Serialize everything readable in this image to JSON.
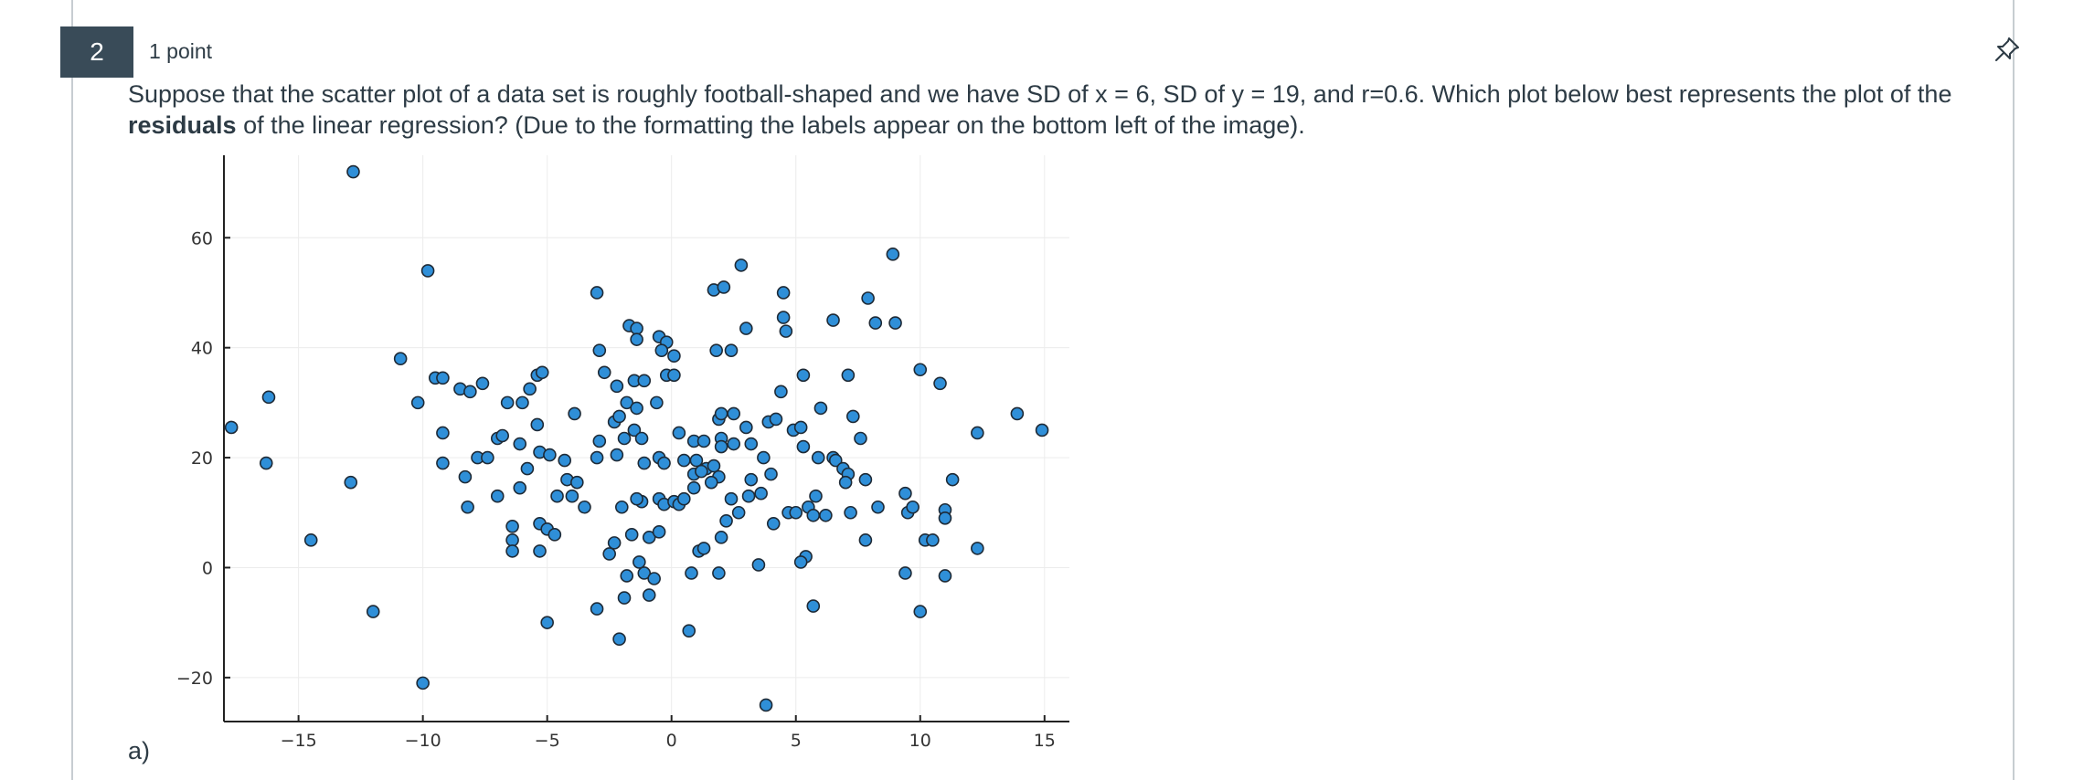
{
  "question": {
    "number": "2",
    "points": "1 point",
    "text_before": "Suppose that the scatter plot of a data set is roughly football-shaped and we have SD of x = 6, SD of y = 19, and r=0.6. Which plot below best represents the plot of the ",
    "text_bold": "residuals",
    "text_after": " of the linear regression? (Due to the formatting the labels appear on the bottom left of the image).",
    "option_label": "a)",
    "pin_icon": "pin-icon"
  },
  "chart_data": {
    "type": "scatter",
    "xlim": [
      -18,
      16
    ],
    "ylim": [
      -28,
      75
    ],
    "xticks": [
      -15,
      -10,
      -5,
      0,
      5,
      10,
      15
    ],
    "yticks": [
      -20,
      0,
      20,
      40,
      60
    ],
    "xtick_labels": [
      "−15",
      "−10",
      "−5",
      "0",
      "5",
      "10",
      "15"
    ],
    "ytick_labels": [
      "−20",
      "0",
      "20",
      "40",
      "60"
    ],
    "grid": true,
    "legend": "none",
    "point_color": "#2f8fd8",
    "points": [
      [
        -17.7,
        25.5
      ],
      [
        -16.2,
        31
      ],
      [
        -16.3,
        19
      ],
      [
        -14.5,
        5
      ],
      [
        -12.8,
        72
      ],
      [
        -12.9,
        15.5
      ],
      [
        -12,
        -8
      ],
      [
        -10.9,
        38
      ],
      [
        -10.2,
        30
      ],
      [
        -9.5,
        34.5
      ],
      [
        -9.2,
        34.5
      ],
      [
        -9.8,
        54
      ],
      [
        -10,
        -21
      ],
      [
        -9.2,
        24.5
      ],
      [
        -9.2,
        19
      ],
      [
        -8.5,
        32.5
      ],
      [
        -8.1,
        32
      ],
      [
        -7.6,
        33.5
      ],
      [
        -7.8,
        20
      ],
      [
        -7.4,
        20
      ],
      [
        -8.3,
        16.5
      ],
      [
        -8.2,
        11
      ],
      [
        -7,
        23.5
      ],
      [
        -6.8,
        24
      ],
      [
        -6.6,
        30
      ],
      [
        -6,
        30
      ],
      [
        -5.7,
        32.5
      ],
      [
        -5.4,
        35
      ],
      [
        -5.2,
        35.5
      ],
      [
        -5.4,
        26
      ],
      [
        -6.1,
        22.5
      ],
      [
        -5.8,
        18
      ],
      [
        -5.3,
        21
      ],
      [
        -4.9,
        20.5
      ],
      [
        -4.3,
        19.5
      ],
      [
        -4.2,
        16
      ],
      [
        -3.8,
        15.5
      ],
      [
        -4.6,
        13
      ],
      [
        -4,
        13
      ],
      [
        -3.5,
        11
      ],
      [
        -6.4,
        7.5
      ],
      [
        -6.4,
        5
      ],
      [
        -6.4,
        3
      ],
      [
        -5.3,
        8
      ],
      [
        -5,
        7
      ],
      [
        -4.7,
        6
      ],
      [
        -5.3,
        3
      ],
      [
        -7,
        13
      ],
      [
        -6.1,
        14.5
      ],
      [
        -5,
        -10
      ],
      [
        -3.9,
        28
      ],
      [
        -3,
        50
      ],
      [
        -2.9,
        39.5
      ],
      [
        -2.7,
        35.5
      ],
      [
        -2.2,
        33
      ],
      [
        -2.3,
        26.5
      ],
      [
        -2.1,
        27.5
      ],
      [
        -2.9,
        23
      ],
      [
        -1.9,
        23.5
      ],
      [
        -1.5,
        25
      ],
      [
        -1.2,
        23.5
      ],
      [
        -3,
        20
      ],
      [
        -2.2,
        20.5
      ],
      [
        -1.1,
        19
      ],
      [
        -1.8,
        30
      ],
      [
        -1.4,
        29
      ],
      [
        -0.6,
        30
      ],
      [
        -1.7,
        44
      ],
      [
        -1.4,
        43.5
      ],
      [
        -1.4,
        41.5
      ],
      [
        -0.5,
        42
      ],
      [
        -0.2,
        41
      ],
      [
        -0.4,
        39.5
      ],
      [
        0.1,
        38.5
      ],
      [
        -1.5,
        34
      ],
      [
        -1.1,
        34
      ],
      [
        -0.2,
        35
      ],
      [
        0.1,
        35
      ],
      [
        -0.5,
        20
      ],
      [
        -0.3,
        19
      ],
      [
        0.3,
        24.5
      ],
      [
        0.9,
        23
      ],
      [
        0.5,
        19.5
      ],
      [
        1,
        19.5
      ],
      [
        1.4,
        18
      ],
      [
        0.9,
        17
      ],
      [
        1.2,
        17.5
      ],
      [
        1.7,
        18.5
      ],
      [
        1.9,
        16.5
      ],
      [
        1.6,
        15.5
      ],
      [
        0.9,
        14.5
      ],
      [
        1.3,
        23
      ],
      [
        2,
        23.5
      ],
      [
        2,
        22
      ],
      [
        2.5,
        22.5
      ],
      [
        1.9,
        27
      ],
      [
        2,
        28
      ],
      [
        2.5,
        28
      ],
      [
        3,
        25.5
      ],
      [
        3.2,
        22.5
      ],
      [
        3.7,
        20
      ],
      [
        3.9,
        26.5
      ],
      [
        4.2,
        27
      ],
      [
        4,
        17
      ],
      [
        3.2,
        16
      ],
      [
        2.4,
        12.5
      ],
      [
        3.1,
        13
      ],
      [
        3.6,
        13.5
      ],
      [
        2.7,
        10
      ],
      [
        2.2,
        8.5
      ],
      [
        4.1,
        8
      ],
      [
        4.7,
        10
      ],
      [
        2,
        5.5
      ],
      [
        1.1,
        3
      ],
      [
        1.3,
        3.5
      ],
      [
        -1.2,
        12
      ],
      [
        -0.5,
        12.5
      ],
      [
        -0.3,
        11.5
      ],
      [
        0.1,
        12
      ],
      [
        0.3,
        11.5
      ],
      [
        0.5,
        12.5
      ],
      [
        -1.4,
        12.5
      ],
      [
        -2,
        11
      ],
      [
        -2.5,
        2.5
      ],
      [
        -2.3,
        4.5
      ],
      [
        -1.6,
        6
      ],
      [
        -0.9,
        5.5
      ],
      [
        -0.5,
        6.5
      ],
      [
        -1.3,
        1
      ],
      [
        -1.1,
        -1
      ],
      [
        -1.8,
        -1.5
      ],
      [
        -0.7,
        -2
      ],
      [
        -1.9,
        -5.5
      ],
      [
        -0.9,
        -5
      ],
      [
        -3,
        -7.5
      ],
      [
        -2.1,
        -13
      ],
      [
        0.7,
        -11.5
      ],
      [
        1.9,
        -1
      ],
      [
        0.8,
        -1
      ],
      [
        3.5,
        0.5
      ],
      [
        1.7,
        50.5
      ],
      [
        2.1,
        51
      ],
      [
        2.8,
        55
      ],
      [
        3,
        43.5
      ],
      [
        1.8,
        39.5
      ],
      [
        2.4,
        39.5
      ],
      [
        4.5,
        50
      ],
      [
        4.5,
        45.5
      ],
      [
        4.6,
        43
      ],
      [
        4.4,
        32
      ],
      [
        5.3,
        35
      ],
      [
        4.9,
        25
      ],
      [
        5.2,
        25.5
      ],
      [
        5.3,
        22
      ],
      [
        5.9,
        20
      ],
      [
        6,
        29
      ],
      [
        6.5,
        20
      ],
      [
        6.6,
        19.5
      ],
      [
        6.9,
        18
      ],
      [
        7.1,
        17
      ],
      [
        7,
        15.5
      ],
      [
        6.5,
        45
      ],
      [
        7.1,
        35
      ],
      [
        7.3,
        27.5
      ],
      [
        7.6,
        23.5
      ],
      [
        7.8,
        16
      ],
      [
        7.9,
        49
      ],
      [
        8.2,
        44.5
      ],
      [
        8.9,
        57
      ],
      [
        9,
        44.5
      ],
      [
        5.5,
        11
      ],
      [
        5.7,
        9.5
      ],
      [
        6.2,
        9.5
      ],
      [
        7.2,
        10
      ],
      [
        5,
        10
      ],
      [
        5.8,
        13
      ],
      [
        5.4,
        2
      ],
      [
        5.2,
        1
      ],
      [
        5.7,
        -7
      ],
      [
        3.8,
        -25
      ],
      [
        7.8,
        5
      ],
      [
        8.3,
        11
      ],
      [
        9.4,
        13.5
      ],
      [
        9.5,
        10
      ],
      [
        9.7,
        11
      ],
      [
        9.4,
        -1
      ],
      [
        10,
        -8
      ],
      [
        10,
        36
      ],
      [
        10.8,
        33.5
      ],
      [
        10.2,
        5
      ],
      [
        10.5,
        5
      ],
      [
        11,
        10.5
      ],
      [
        11,
        9
      ],
      [
        11,
        -1.5
      ],
      [
        11.3,
        16
      ],
      [
        12.3,
        24.5
      ],
      [
        12.3,
        3.5
      ],
      [
        13.9,
        28
      ],
      [
        14.9,
        25
      ]
    ]
  }
}
